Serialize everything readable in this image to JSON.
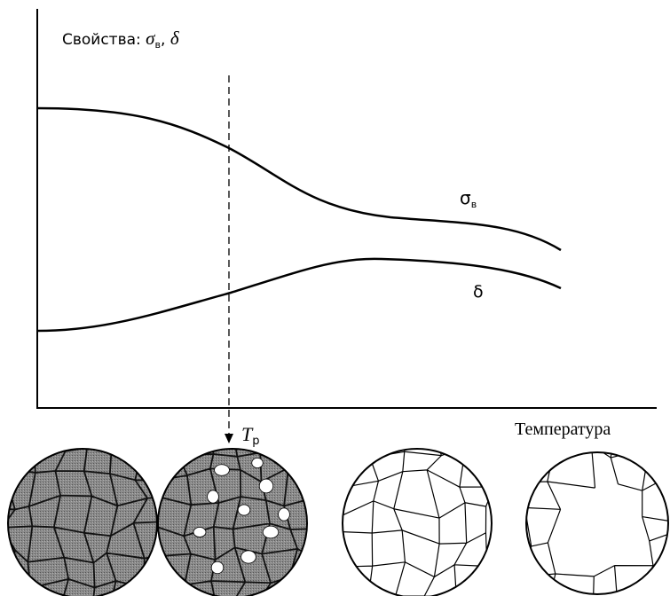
{
  "y_label": {
    "prefix": "Свойства: ",
    "sigma": "σ",
    "sigma_sub": "в",
    "sep": ", ",
    "delta": "δ"
  },
  "curves": [
    {
      "label": "σ",
      "label_sub": "в"
    },
    {
      "label": "δ"
    }
  ],
  "marker": {
    "label": "T",
    "label_sub": "р"
  },
  "x_label": "Температура"
}
